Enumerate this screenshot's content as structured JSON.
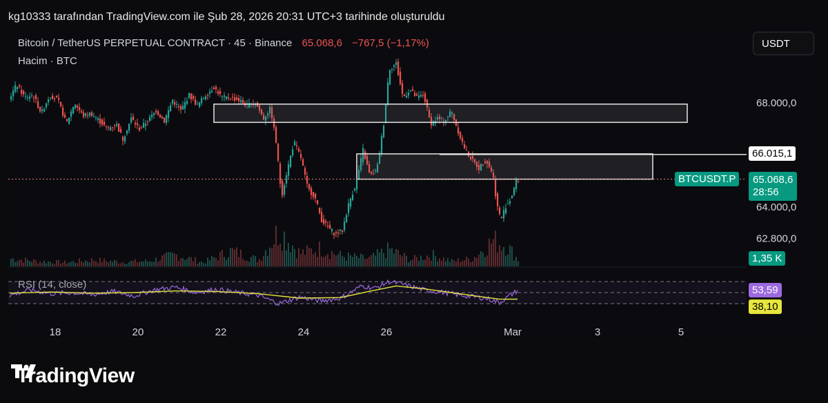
{
  "header": {
    "text": "kg10333 tarafından TradingView.com ile Şub 28, 2026 20:31 UTC+3 tarihinde oluşturuldu"
  },
  "legend": {
    "title": "Bitcoin / TetherUS PERPETUAL CONTRACT · 45 · Binance",
    "price": "65.068,6",
    "change": "−767,5 (−1,17%)",
    "volume_label": "Hacim · BTC"
  },
  "currency_button": "USDT",
  "rsi_label": "RSI (14, close)",
  "colors": {
    "up": "#26a69a",
    "down": "#ef5350",
    "rsi": "#9c6ade",
    "rsi_ma": "#e6e63c",
    "tag_green": "#089981",
    "tag_purple": "#9c6ade",
    "tag_yellow": "#e6e63c"
  },
  "tags": {
    "level_price": "66.015,1",
    "symbol": "BTCUSDT.P",
    "last_price": "65.068,6",
    "countdown": "28:56",
    "volume": "1,35 K",
    "rsi_value": "53,59",
    "rsi_ma_value": "38,10"
  },
  "chart_data": {
    "type": "candlestick",
    "title": "Bitcoin / TetherUS PERPETUAL CONTRACT · 45 · Binance",
    "interval": "45",
    "y_axis_ticks": [
      "68.000,0",
      "64.000,0",
      "62.800,0"
    ],
    "y_tick_values": [
      68000,
      64000,
      62800
    ],
    "x_axis_ticks": [
      "18",
      "20",
      "22",
      "24",
      "26",
      "Mar",
      "3",
      "5"
    ],
    "price_path": [
      [
        0,
        68100
      ],
      [
        12,
        68700
      ],
      [
        24,
        68200
      ],
      [
        36,
        68300
      ],
      [
        48,
        67600
      ],
      [
        60,
        68300
      ],
      [
        72,
        68100
      ],
      [
        84,
        67200
      ],
      [
        96,
        68000
      ],
      [
        108,
        67500
      ],
      [
        120,
        67600
      ],
      [
        132,
        67300
      ],
      [
        144,
        67000
      ],
      [
        156,
        67200
      ],
      [
        166,
        66600
      ],
      [
        178,
        67400
      ],
      [
        190,
        67000
      ],
      [
        202,
        67300
      ],
      [
        214,
        67700
      ],
      [
        226,
        67300
      ],
      [
        238,
        68100
      ],
      [
        250,
        67700
      ],
      [
        262,
        68300
      ],
      [
        274,
        67900
      ],
      [
        286,
        68300
      ],
      [
        298,
        68600
      ],
      [
        310,
        68200
      ],
      [
        322,
        68200
      ],
      [
        334,
        68100
      ],
      [
        346,
        67900
      ],
      [
        358,
        68000
      ],
      [
        370,
        67400
      ],
      [
        380,
        67800
      ],
      [
        388,
        66500
      ],
      [
        396,
        64400
      ],
      [
        404,
        65400
      ],
      [
        414,
        66500
      ],
      [
        424,
        65900
      ],
      [
        434,
        64700
      ],
      [
        444,
        64400
      ],
      [
        454,
        63500
      ],
      [
        464,
        63200
      ],
      [
        474,
        62950
      ],
      [
        484,
        63100
      ],
      [
        494,
        64200
      ],
      [
        504,
        64900
      ],
      [
        514,
        66200
      ],
      [
        524,
        65200
      ],
      [
        534,
        65400
      ],
      [
        544,
        67200
      ],
      [
        552,
        69300
      ],
      [
        562,
        69500
      ],
      [
        572,
        68200
      ],
      [
        582,
        68500
      ],
      [
        592,
        68200
      ],
      [
        602,
        68300
      ],
      [
        612,
        67200
      ],
      [
        622,
        67400
      ],
      [
        632,
        67300
      ],
      [
        642,
        67700
      ],
      [
        652,
        66900
      ],
      [
        662,
        66200
      ],
      [
        672,
        65800
      ],
      [
        682,
        65500
      ],
      [
        692,
        65800
      ],
      [
        702,
        65300
      ],
      [
        708,
        64100
      ],
      [
        714,
        63500
      ],
      [
        720,
        64000
      ],
      [
        728,
        64300
      ],
      [
        736,
        65000
      ]
    ],
    "volume_values": [
      [
        0,
        0.6
      ],
      [
        40,
        0.4
      ],
      [
        80,
        0.3
      ],
      [
        120,
        0.5
      ],
      [
        160,
        0.35
      ],
      [
        200,
        0.4
      ],
      [
        240,
        0.9
      ],
      [
        280,
        0.3
      ],
      [
        320,
        1.2
      ],
      [
        360,
        0.5
      ],
      [
        390,
        2.8
      ],
      [
        420,
        1.0
      ],
      [
        450,
        1.4
      ],
      [
        480,
        0.8
      ],
      [
        520,
        0.6
      ],
      [
        550,
        1.3
      ],
      [
        580,
        0.5
      ],
      [
        610,
        0.9
      ],
      [
        640,
        0.4
      ],
      [
        670,
        0.6
      ],
      [
        700,
        2.0
      ],
      [
        720,
        1.6
      ],
      [
        736,
        0.5
      ]
    ],
    "rsi_values": [
      [
        0,
        45
      ],
      [
        30,
        55
      ],
      [
        60,
        48
      ],
      [
        90,
        50
      ],
      [
        120,
        46
      ],
      [
        150,
        52
      ],
      [
        180,
        44
      ],
      [
        210,
        55
      ],
      [
        240,
        60
      ],
      [
        270,
        50
      ],
      [
        300,
        56
      ],
      [
        330,
        50
      ],
      [
        360,
        45
      ],
      [
        390,
        30
      ],
      [
        420,
        42
      ],
      [
        450,
        35
      ],
      [
        480,
        40
      ],
      [
        510,
        62
      ],
      [
        530,
        58
      ],
      [
        550,
        70
      ],
      [
        570,
        65
      ],
      [
        600,
        55
      ],
      [
        630,
        50
      ],
      [
        660,
        44
      ],
      [
        690,
        40
      ],
      [
        710,
        32
      ],
      [
        725,
        45
      ],
      [
        736,
        53.59
      ]
    ],
    "rsi_ma_values": [
      [
        0,
        49
      ],
      [
        60,
        51
      ],
      [
        120,
        49
      ],
      [
        180,
        50
      ],
      [
        240,
        53
      ],
      [
        300,
        52
      ],
      [
        360,
        48
      ],
      [
        420,
        40
      ],
      [
        480,
        41
      ],
      [
        520,
        52
      ],
      [
        560,
        62
      ],
      [
        600,
        57
      ],
      [
        640,
        50
      ],
      [
        680,
        43
      ],
      [
        710,
        38
      ],
      [
        736,
        38.1
      ]
    ],
    "rsi_levels": [
      70,
      50,
      30
    ],
    "zones": [
      {
        "from_x": 298,
        "to_x": 984,
        "price_low": 67250,
        "price_high": 67950
      },
      {
        "from_x": 505,
        "to_x": 934,
        "price_low": 65070,
        "price_high": 66040
      }
    ],
    "horizontal_line": {
      "from_x": 625,
      "price": 66015.1
    },
    "last_price": 65068.6
  }
}
